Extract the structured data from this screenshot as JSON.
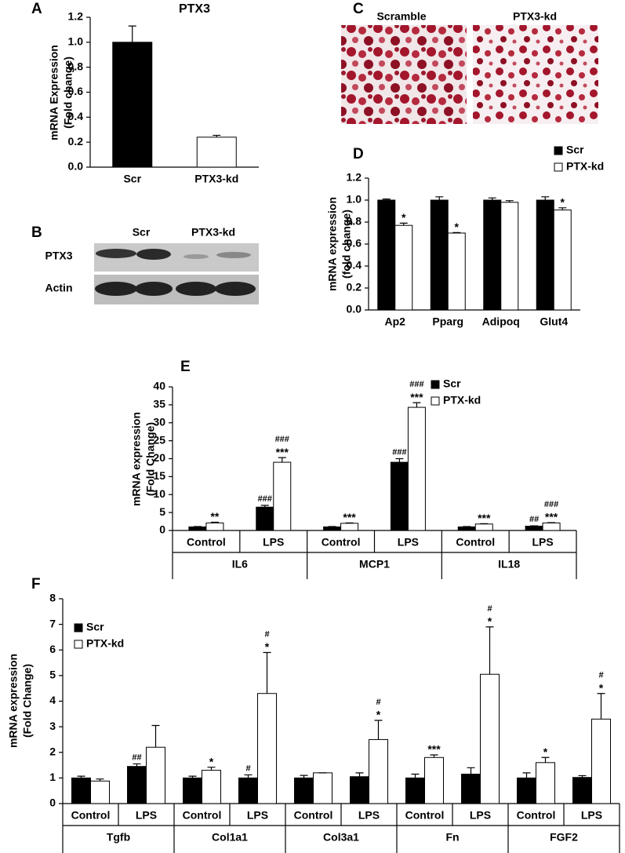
{
  "chart_data": [
    {
      "panel": "A",
      "type": "bar",
      "title": "PTX3",
      "ylabel": [
        "mRNA Expression",
        "(Fold change)"
      ],
      "categories": [
        "Scr",
        "PTX3-kd"
      ],
      "values": [
        1.0,
        0.24
      ],
      "errors": [
        0.13,
        0.015
      ],
      "colors": [
        "#000000",
        "#ffffff"
      ],
      "ylim": [
        0,
        1.2
      ],
      "yticks": [
        {
          "value": 0,
          "label": "0.0"
        },
        0.2,
        0.4,
        0.6,
        0.8,
        {
          "value": 1,
          "label": "1.0"
        },
        1.2
      ]
    },
    {
      "panel": "D",
      "type": "bar",
      "ylabel": [
        "mRNA expression",
        "(fold change)"
      ],
      "categories": [
        "Ap2",
        "Pparg",
        "Adipoq",
        "Glut4"
      ],
      "series": [
        {
          "name": "Scr",
          "color": "#000000",
          "values": [
            1.0,
            1.0,
            1.0,
            1.0
          ],
          "errors": [
            0.01,
            0.03,
            0.02,
            0.03
          ]
        },
        {
          "name": "PTX-kd",
          "color": "#ffffff",
          "values": [
            0.77,
            0.7,
            0.98,
            0.91
          ],
          "errors": [
            0.02,
            0.005,
            0.015,
            0.02
          ],
          "stars": [
            "*",
            "*",
            null,
            "*"
          ]
        }
      ],
      "ylim": [
        0,
        1.2
      ],
      "yticks": [
        {
          "value": 0,
          "label": "0.0"
        },
        0.2,
        0.4,
        0.6,
        0.8,
        {
          "value": 1,
          "label": "1.0"
        },
        1.2
      ],
      "legend": "upper right"
    },
    {
      "panel": "E",
      "type": "bar",
      "ylabel": [
        "mRNA expression",
        "(Fold Change)"
      ],
      "categories": [
        "Control",
        "LPS",
        "Control",
        "LPS",
        "Control",
        "LPS"
      ],
      "groups": [
        "IL6",
        "MCP1",
        "IL18"
      ],
      "series": [
        {
          "name": "Scr",
          "color": "#000000",
          "values": [
            1.0,
            6.5,
            1.0,
            19,
            1.0,
            1.2
          ],
          "errors": [
            0.1,
            0.5,
            0.1,
            1.0,
            0.1,
            0.1
          ],
          "hashes": [
            null,
            "###",
            null,
            "###",
            null,
            "##"
          ]
        },
        {
          "name": "PTX-kd",
          "color": "#ffffff",
          "values": [
            2.1,
            19,
            2.0,
            34.3,
            1.8,
            2.1
          ],
          "errors": [
            0.2,
            1.3,
            0.1,
            1.3,
            0.1,
            0.1
          ],
          "stars": [
            "**",
            "***",
            "***",
            "***",
            "***",
            "***"
          ],
          "hashes": [
            null,
            "###",
            null,
            "###",
            null,
            "###"
          ]
        }
      ],
      "ylim": [
        0,
        40
      ],
      "yticks": [
        0,
        5,
        10,
        15,
        20,
        25,
        30,
        35,
        40
      ],
      "legend": "upper right"
    },
    {
      "panel": "F",
      "type": "bar",
      "ylabel": [
        "mRNA expression",
        "(Fold Change)"
      ],
      "categories": [
        "Control",
        "LPS",
        "Control",
        "LPS",
        "Control",
        "LPS",
        "Control",
        "LPS",
        "Control",
        "LPS"
      ],
      "groups": [
        "Tgfb",
        "Col1a1",
        "Col3a1",
        "Fn",
        "FGF2"
      ],
      "series": [
        {
          "name": "Scr",
          "color": "#000000",
          "values": [
            1.0,
            1.45,
            1.0,
            1.0,
            1.0,
            1.05,
            1.0,
            1.15,
            1.0,
            1.02
          ],
          "errors": [
            0.07,
            0.1,
            0.07,
            0.12,
            0.1,
            0.15,
            0.15,
            0.25,
            0.2,
            0.07
          ],
          "hashes": [
            null,
            "##",
            null,
            "#",
            null,
            null,
            null,
            null,
            null,
            null
          ]
        },
        {
          "name": "PTX-kd",
          "color": "#ffffff",
          "values": [
            0.88,
            2.2,
            1.3,
            4.3,
            1.2,
            2.5,
            1.8,
            5.05,
            1.6,
            3.3
          ],
          "errors": [
            0.08,
            0.85,
            0.12,
            1.6,
            0,
            0.75,
            0.1,
            1.85,
            0.2,
            1.0
          ],
          "stars": [
            null,
            null,
            "*",
            "*",
            null,
            "*",
            "***",
            "*",
            "*",
            "*"
          ],
          "hashes": [
            null,
            null,
            null,
            "#",
            null,
            "#",
            null,
            "#",
            null,
            "#"
          ]
        }
      ],
      "ylim": [
        0,
        8
      ],
      "yticks": [
        0,
        1,
        2,
        3,
        4,
        5,
        6,
        7,
        8
      ],
      "legend": "upper left"
    }
  ],
  "blot": {
    "panel": "B",
    "lanes": [
      "Scr",
      "PTX3-kd"
    ],
    "rows": [
      "PTX3",
      "Actin"
    ]
  },
  "micrograph": {
    "panel": "C",
    "labels": [
      "Scramble",
      "PTX3-kd"
    ]
  }
}
